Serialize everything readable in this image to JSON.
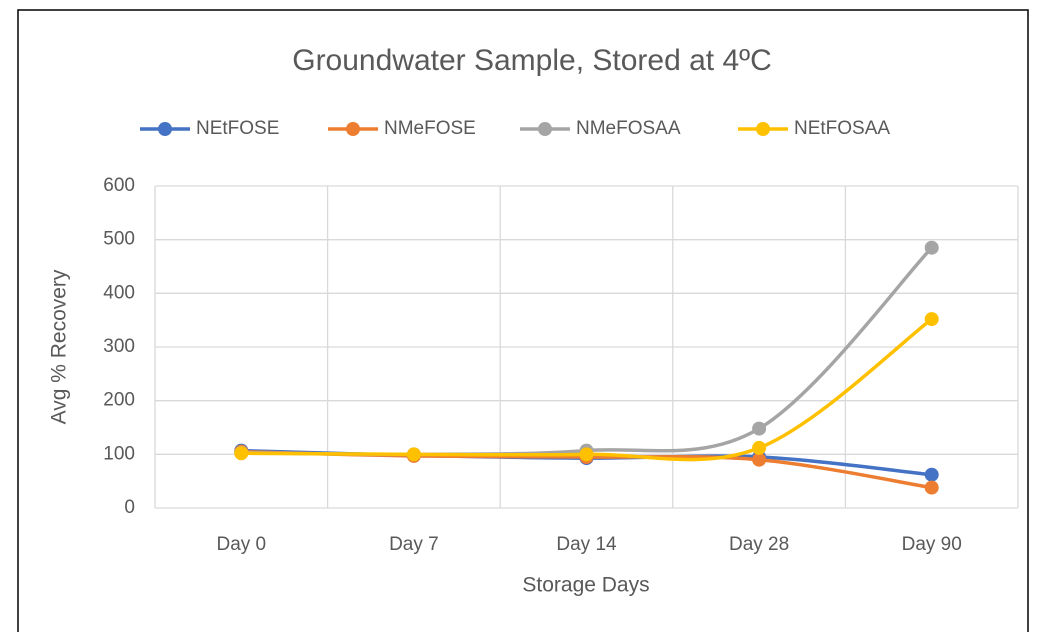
{
  "chart_data": {
    "type": "line",
    "title": "Groundwater Sample, Stored at 4ºC",
    "x_label": "Storage Days",
    "y_label": "Avg % Recovery",
    "categories": [
      "Day 0",
      "Day 7",
      "Day 14",
      "Day 28",
      "Day 90"
    ],
    "series": [
      {
        "name": "NEtFOSE",
        "color": "#4472c4",
        "values": [
          107,
          98,
          93,
          95,
          62
        ]
      },
      {
        "name": "NMeFOSE",
        "color": "#ed7d31",
        "values": [
          105,
          97,
          95,
          90,
          38
        ]
      },
      {
        "name": "NMeFOSAA",
        "color": "#a5a5a5",
        "values": [
          103,
          100,
          107,
          148,
          485
        ]
      },
      {
        "name": "NEtFOSAA",
        "color": "#ffc000",
        "values": [
          102,
          100,
          100,
          112,
          352
        ]
      }
    ],
    "ylim": [
      0,
      600
    ],
    "yticks": [
      0,
      100,
      200,
      300,
      400,
      500,
      600
    ],
    "grid": true,
    "smooth": true,
    "legend": "top"
  }
}
